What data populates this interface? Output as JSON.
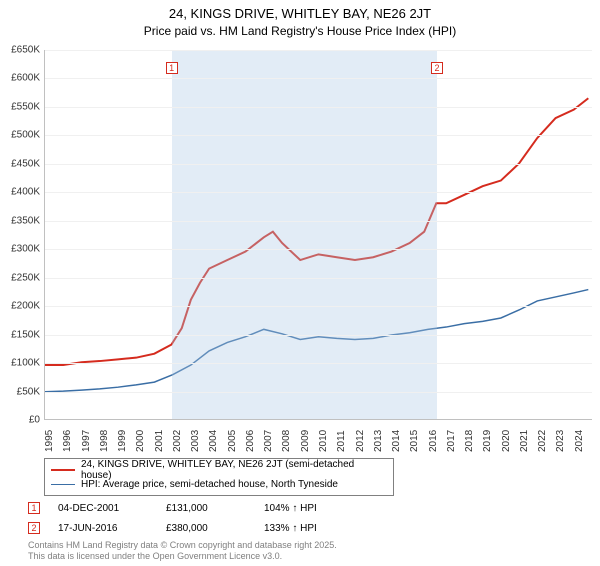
{
  "title": "24, KINGS DRIVE, WHITLEY BAY, NE26 2JT",
  "subtitle": "Price paid vs. HM Land Registry's House Price Index (HPI)",
  "chart": {
    "type": "line",
    "ylim": [
      0,
      650000
    ],
    "ytick_step": 50000,
    "ytick_labels": [
      "£0",
      "£50K",
      "£100K",
      "£150K",
      "£200K",
      "£250K",
      "£300K",
      "£350K",
      "£400K",
      "£450K",
      "£500K",
      "£550K",
      "£600K",
      "£650K"
    ],
    "xlim": [
      1995,
      2025
    ],
    "xtick_step": 1,
    "xtick_labels": [
      "1995",
      "1996",
      "1997",
      "1998",
      "1999",
      "2000",
      "2001",
      "2002",
      "2003",
      "2004",
      "2005",
      "2006",
      "2007",
      "2008",
      "2009",
      "2010",
      "2011",
      "2012",
      "2013",
      "2014",
      "2015",
      "2016",
      "2017",
      "2018",
      "2019",
      "2020",
      "2021",
      "2022",
      "2023",
      "2024"
    ],
    "background_color": "#ffffff",
    "grid_color": "#f0f0f0",
    "shaded_ranges": [
      [
        2001.93,
        2016.46
      ]
    ],
    "shade_color": "rgba(173,200,230,0.35)",
    "series": [
      {
        "name": "price_paid",
        "label": "24, KINGS DRIVE, WHITLEY BAY, NE26 2JT (semi-detached house)",
        "color": "#d52b1e",
        "line_width": 2,
        "points": [
          [
            1995,
            95000
          ],
          [
            1996,
            95000
          ],
          [
            1997,
            100000
          ],
          [
            1998,
            102000
          ],
          [
            1999,
            105000
          ],
          [
            2000,
            108000
          ],
          [
            2001,
            115000
          ],
          [
            2001.93,
            131000
          ],
          [
            2002.5,
            160000
          ],
          [
            2003,
            210000
          ],
          [
            2003.5,
            240000
          ],
          [
            2004,
            265000
          ],
          [
            2005,
            280000
          ],
          [
            2006,
            295000
          ],
          [
            2007,
            320000
          ],
          [
            2007.5,
            330000
          ],
          [
            2008,
            310000
          ],
          [
            2009,
            280000
          ],
          [
            2010,
            290000
          ],
          [
            2011,
            285000
          ],
          [
            2012,
            280000
          ],
          [
            2013,
            285000
          ],
          [
            2014,
            295000
          ],
          [
            2015,
            310000
          ],
          [
            2015.8,
            330000
          ],
          [
            2016.46,
            380000
          ],
          [
            2017,
            380000
          ],
          [
            2018,
            395000
          ],
          [
            2019,
            410000
          ],
          [
            2020,
            420000
          ],
          [
            2021,
            450000
          ],
          [
            2022,
            495000
          ],
          [
            2023,
            530000
          ],
          [
            2024,
            545000
          ],
          [
            2024.8,
            565000
          ]
        ]
      },
      {
        "name": "hpi",
        "label": "HPI: Average price, semi-detached house, North Tyneside",
        "color": "#3a6ea5",
        "line_width": 1.5,
        "points": [
          [
            1995,
            48000
          ],
          [
            1996,
            49000
          ],
          [
            1997,
            51000
          ],
          [
            1998,
            53000
          ],
          [
            1999,
            56000
          ],
          [
            2000,
            60000
          ],
          [
            2001,
            65000
          ],
          [
            2002,
            78000
          ],
          [
            2003,
            95000
          ],
          [
            2004,
            120000
          ],
          [
            2005,
            135000
          ],
          [
            2006,
            145000
          ],
          [
            2007,
            158000
          ],
          [
            2008,
            150000
          ],
          [
            2009,
            140000
          ],
          [
            2010,
            145000
          ],
          [
            2011,
            142000
          ],
          [
            2012,
            140000
          ],
          [
            2013,
            142000
          ],
          [
            2014,
            148000
          ],
          [
            2015,
            152000
          ],
          [
            2016,
            158000
          ],
          [
            2017,
            162000
          ],
          [
            2018,
            168000
          ],
          [
            2019,
            172000
          ],
          [
            2020,
            178000
          ],
          [
            2021,
            192000
          ],
          [
            2022,
            208000
          ],
          [
            2023,
            215000
          ],
          [
            2024,
            222000
          ],
          [
            2024.8,
            228000
          ]
        ]
      }
    ],
    "sale_markers": [
      {
        "n": 1,
        "x": 2001.93,
        "color": "#d52b1e"
      },
      {
        "n": 2,
        "x": 2016.46,
        "color": "#d52b1e"
      }
    ]
  },
  "legend": {
    "border_color": "#808080",
    "fontsize": 10
  },
  "sales": [
    {
      "n": "1",
      "date": "04-DEC-2001",
      "price": "£131,000",
      "delta": "104% ↑ HPI",
      "color": "#d52b1e"
    },
    {
      "n": "2",
      "date": "17-JUN-2016",
      "price": "£380,000",
      "delta": "133% ↑ HPI",
      "color": "#d52b1e"
    }
  ],
  "footer": {
    "line1": "Contains HM Land Registry data © Crown copyright and database right 2025.",
    "line2": "This data is licensed under the Open Government Licence v3.0."
  }
}
